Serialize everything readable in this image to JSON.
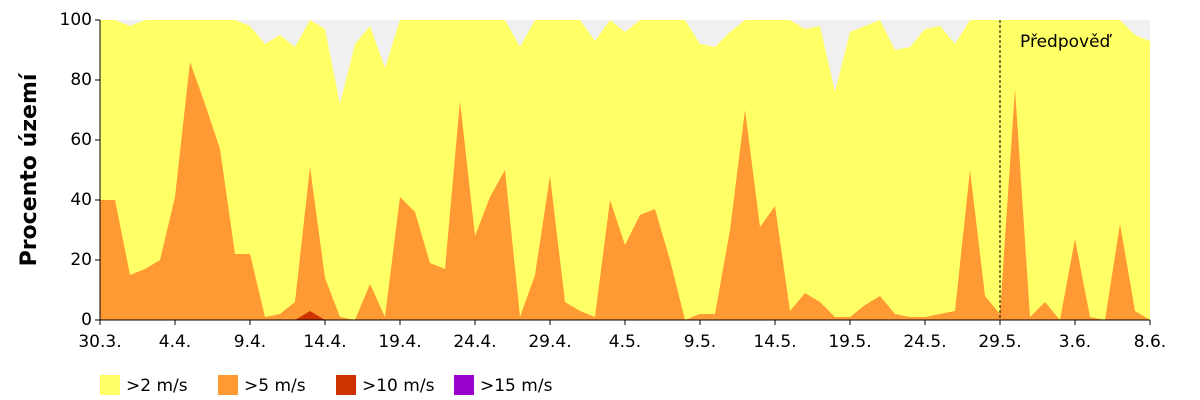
{
  "chart_data": {
    "type": "area",
    "y_label": "Procento území",
    "categories": [
      "30.3.",
      null,
      null,
      null,
      null,
      "4.4.",
      null,
      null,
      null,
      null,
      "9.4.",
      null,
      null,
      null,
      null,
      "14.4.",
      null,
      null,
      null,
      null,
      "19.4.",
      null,
      null,
      null,
      null,
      "24.4.",
      null,
      null,
      null,
      null,
      "29.4.",
      null,
      null,
      null,
      null,
      "4.5.",
      null,
      null,
      null,
      null,
      "9.5.",
      null,
      null,
      null,
      null,
      "14.5.",
      null,
      null,
      null,
      null,
      "19.5.",
      null,
      null,
      null,
      null,
      "24.5.",
      null,
      null,
      null,
      null,
      "29.5.",
      null,
      null,
      null,
      null,
      "3.6.",
      null,
      null,
      null,
      null,
      "8.6."
    ],
    "series": [
      {
        "name": ">2 m/s",
        "color": "#ffff66",
        "values": [
          100,
          100,
          98,
          100,
          100,
          100,
          100,
          100,
          100,
          100,
          98,
          92,
          95,
          91,
          100,
          97,
          72,
          92,
          98,
          84,
          100,
          100,
          100,
          100,
          100,
          100,
          100,
          100,
          91,
          100,
          100,
          100,
          100,
          93,
          100,
          96,
          100,
          100,
          100,
          100,
          92,
          91,
          96,
          100,
          100,
          100,
          100,
          97,
          98,
          76,
          96,
          98,
          100,
          90,
          91,
          97,
          98,
          92,
          100,
          100,
          100,
          100,
          100,
          100,
          100,
          100,
          100,
          100,
          100,
          95,
          93
        ]
      },
      {
        "name": ">5 m/s",
        "color": "#ff9933",
        "values": [
          40,
          40,
          15,
          17,
          20,
          41,
          86,
          72,
          57,
          22,
          22,
          1,
          2,
          6,
          51,
          14,
          1,
          0,
          12,
          1,
          41,
          36,
          19,
          17,
          73,
          28,
          41,
          50,
          1,
          15,
          48,
          6,
          3,
          1,
          40,
          25,
          35,
          37,
          20,
          0,
          2,
          2,
          30,
          70,
          31,
          38,
          3,
          9,
          6,
          1,
          1,
          5,
          8,
          2,
          1,
          1,
          2,
          3,
          50,
          8,
          2,
          77,
          1,
          6,
          0,
          27,
          1,
          0,
          32,
          3,
          0
        ]
      },
      {
        "name": ">10 m/s",
        "color": "#cc3300",
        "values": [
          0,
          0,
          0,
          0,
          0,
          0,
          0,
          0,
          0,
          0,
          0,
          0,
          0,
          0,
          3,
          0,
          0,
          0,
          0,
          0,
          0,
          0,
          0,
          0,
          0,
          0,
          0,
          0,
          0,
          0,
          0,
          0,
          0,
          0,
          0,
          0,
          0,
          0,
          0,
          0,
          0,
          0,
          0,
          0,
          0,
          0,
          0,
          0,
          0,
          0,
          0,
          0,
          0,
          0,
          0,
          0,
          0,
          0,
          0,
          0,
          0,
          0,
          0,
          0,
          0,
          0,
          0,
          0,
          0,
          0,
          0
        ]
      },
      {
        "name": ">15 m/s",
        "color": "#9900cc",
        "values": [
          0,
          0,
          0,
          0,
          0,
          0,
          0,
          0,
          0,
          0,
          0,
          0,
          0,
          0,
          0,
          0,
          0,
          0,
          0,
          0,
          0,
          0,
          0,
          0,
          0,
          0,
          0,
          0,
          0,
          0,
          0,
          0,
          0,
          0,
          0,
          0,
          0,
          0,
          0,
          0,
          0,
          0,
          0,
          0,
          0,
          0,
          0,
          0,
          0,
          0,
          0,
          0,
          0,
          0,
          0,
          0,
          0,
          0,
          0,
          0,
          0,
          0,
          0,
          0,
          0,
          0,
          0,
          0,
          0,
          0,
          0
        ]
      }
    ],
    "ylim": [
      0,
      100
    ],
    "yticks": [
      0,
      20,
      40,
      60,
      80,
      100
    ],
    "annotation": {
      "text": "Předpověď",
      "at": "29.5."
    }
  }
}
